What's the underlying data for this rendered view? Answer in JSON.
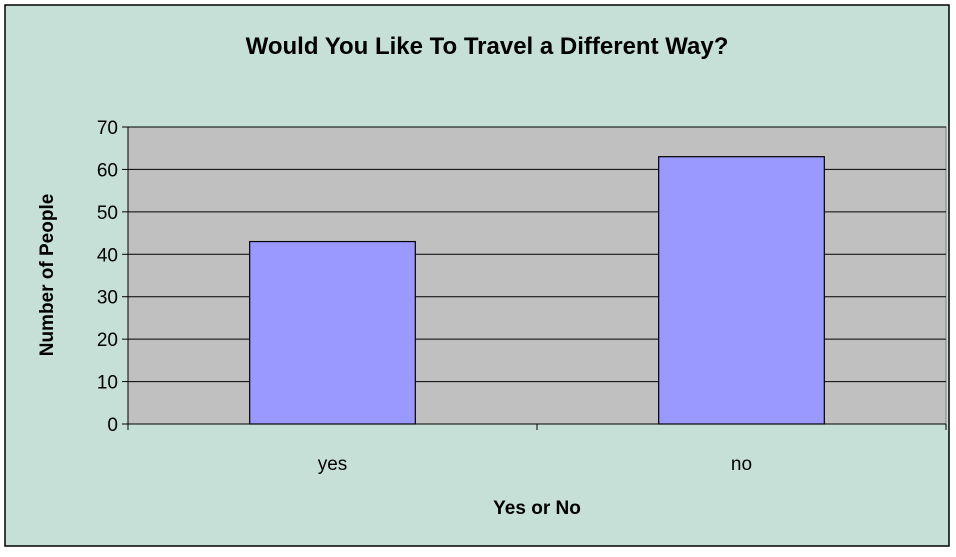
{
  "chart_data": {
    "type": "bar",
    "title": "Would You Like To Travel a Different Way?",
    "xlabel": "Yes or No",
    "ylabel": "Number of People",
    "categories": [
      "yes",
      "no"
    ],
    "values": [
      43,
      63
    ],
    "ylim": [
      0,
      70
    ],
    "y_ticks": [
      "0",
      "10",
      "20",
      "30",
      "40",
      "50",
      "60",
      "70"
    ],
    "grid": true,
    "legend": false,
    "colors": {
      "chart_background": "#c6e0d8",
      "plot_background": "#c0c0c0",
      "bar_fill": "#9999ff",
      "bar_stroke": "#000000",
      "gridline": "#000000"
    }
  }
}
